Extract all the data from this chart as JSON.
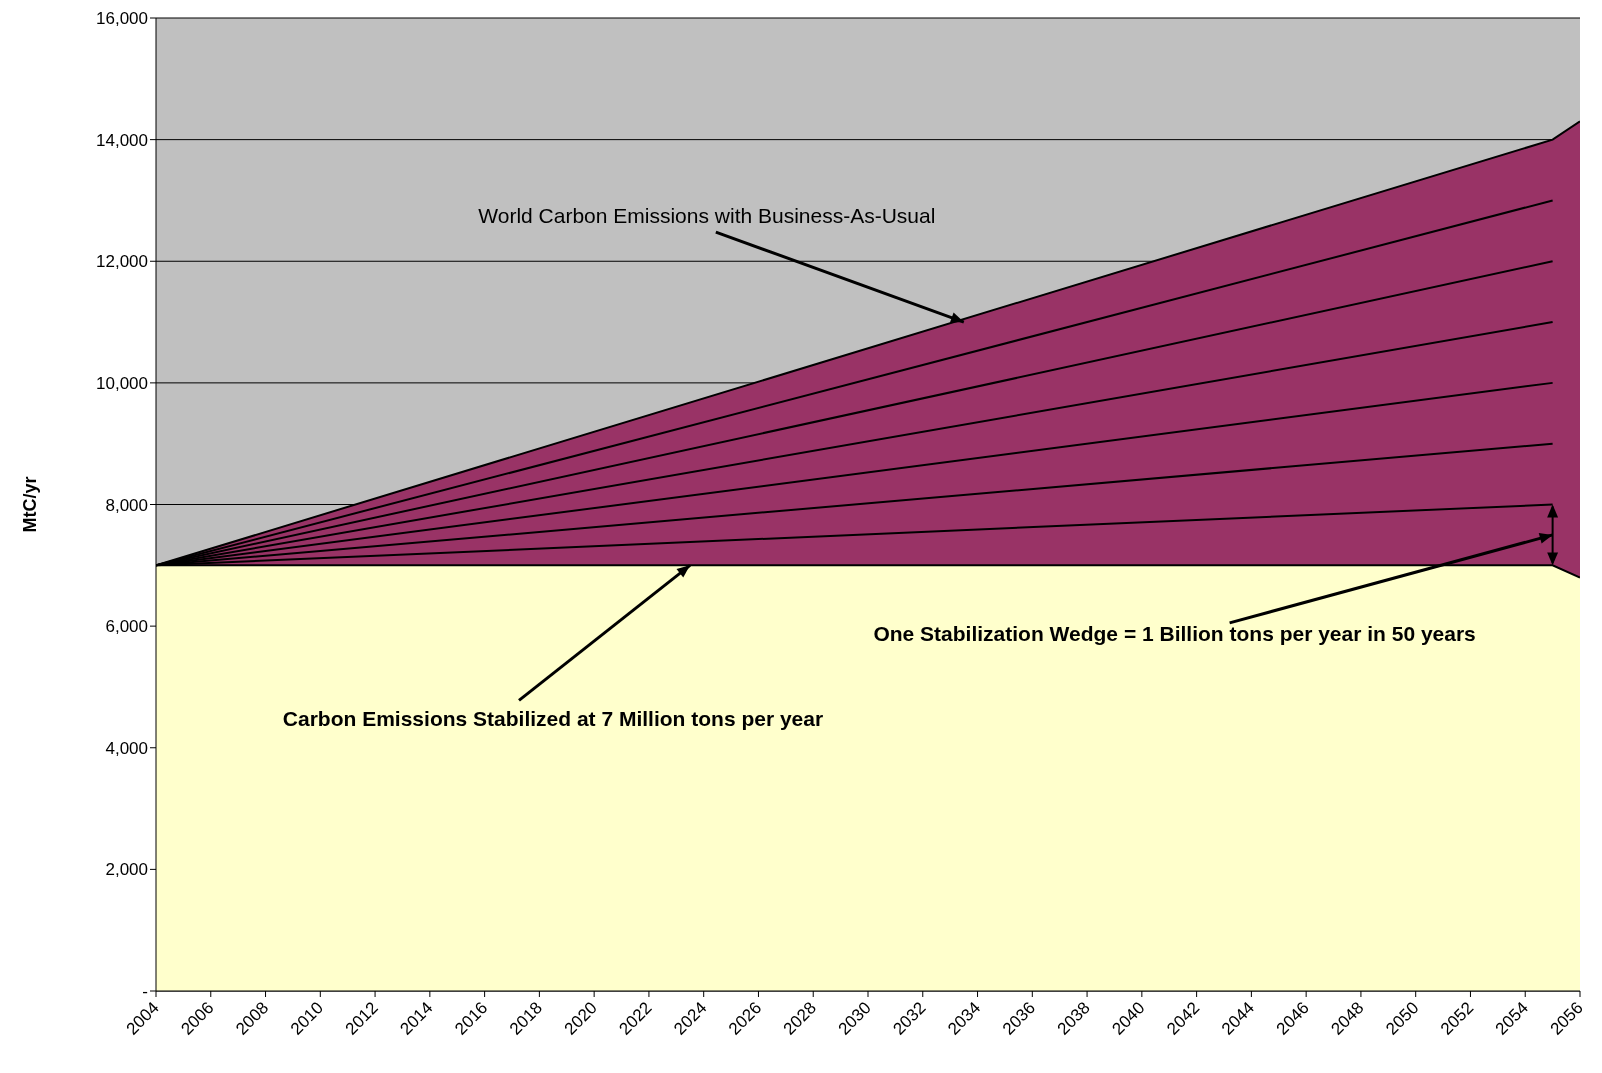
{
  "chart_data": {
    "type": "area",
    "ylabel": "MtC/yr",
    "xlim": [
      2004,
      2056
    ],
    "xticks": [
      2004,
      2006,
      2008,
      2010,
      2012,
      2014,
      2016,
      2018,
      2020,
      2022,
      2024,
      2026,
      2028,
      2030,
      2032,
      2034,
      2036,
      2038,
      2040,
      2042,
      2044,
      2046,
      2048,
      2050,
      2052,
      2054,
      2056
    ],
    "ylim": [
      0,
      16000
    ],
    "yticks": [
      {
        "value": 0,
        "label": "-"
      },
      {
        "value": 2000,
        "label": "2,000"
      },
      {
        "value": 4000,
        "label": "4,000"
      },
      {
        "value": 6000,
        "label": "6,000"
      },
      {
        "value": 8000,
        "label": "8,000"
      },
      {
        "value": 10000,
        "label": "10,000"
      },
      {
        "value": 12000,
        "label": "12,000"
      },
      {
        "value": 14000,
        "label": "14,000"
      },
      {
        "value": 16000,
        "label": "16,000"
      }
    ],
    "grid": "y",
    "series": [
      {
        "color": "#993366",
        "x": [
          2004,
          2055,
          2056
        ],
        "values": [
          7000,
          14000,
          14300
        ]
      },
      {
        "color": "#ffffcc",
        "x": [
          2004,
          2055,
          2056
        ],
        "values": [
          7000,
          7000,
          6800
        ]
      },
      {
        "type": "line",
        "color": "#000000",
        "x": [
          2004,
          2055
        ],
        "values": [
          7000,
          8000
        ]
      },
      {
        "type": "line",
        "color": "#000000",
        "x": [
          2004,
          2055
        ],
        "values": [
          7000,
          9000
        ]
      },
      {
        "type": "line",
        "color": "#000000",
        "x": [
          2004,
          2055
        ],
        "values": [
          7000,
          10000
        ]
      },
      {
        "type": "line",
        "color": "#000000",
        "x": [
          2004,
          2055
        ],
        "values": [
          7000,
          11000
        ]
      },
      {
        "type": "line",
        "color": "#000000",
        "x": [
          2004,
          2055
        ],
        "values": [
          7000,
          12000
        ]
      },
      {
        "type": "line",
        "color": "#000000",
        "x": [
          2004,
          2055
        ],
        "values": [
          7000,
          13000
        ]
      }
    ],
    "annotations": [
      {
        "text": "World Carbon Emissions with Business-As-Usual",
        "x": 2033.5,
        "y": 11000
      },
      {
        "text": "Carbon Emissions Stabilized at 7 Million tons per year",
        "x": 2023.5,
        "y": 7000
      },
      "One Stabilization Wedge = 1 Billion tons per year in 50 years"
    ]
  }
}
